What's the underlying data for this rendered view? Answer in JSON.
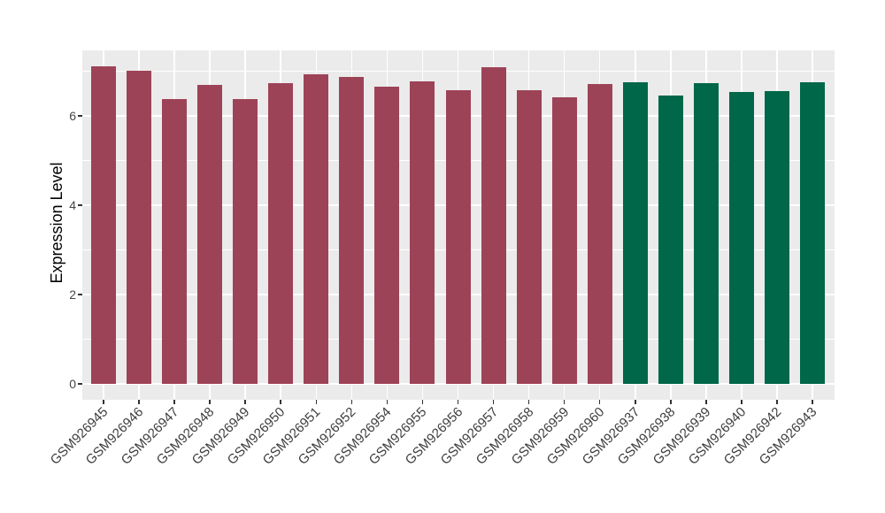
{
  "chart_data": {
    "type": "bar",
    "title": "",
    "xlabel": "",
    "ylabel": "Expression Level",
    "ylim": [
      0,
      7.5
    ],
    "yticks_major": [
      0,
      2,
      4,
      6
    ],
    "yticks_minor": [
      1,
      3,
      5,
      7
    ],
    "grid": "on",
    "legend_position": "none",
    "panel_bg": "#ebebeb",
    "grid_color": "#ffffff",
    "tick_mark_color": "#333333",
    "axis_text_color": "#3d3d3d",
    "group_colors": {
      "groupA": "#9d4357",
      "groupB": "#006749"
    },
    "bars": [
      {
        "label": "GSM926945",
        "value": 7.11,
        "group": "groupA"
      },
      {
        "label": "GSM926946",
        "value": 7.01,
        "group": "groupA"
      },
      {
        "label": "GSM926947",
        "value": 6.38,
        "group": "groupA"
      },
      {
        "label": "GSM926948",
        "value": 6.69,
        "group": "groupA"
      },
      {
        "label": "GSM926949",
        "value": 6.38,
        "group": "groupA"
      },
      {
        "label": "GSM926950",
        "value": 6.74,
        "group": "groupA"
      },
      {
        "label": "GSM926951",
        "value": 6.93,
        "group": "groupA"
      },
      {
        "label": "GSM926952",
        "value": 6.88,
        "group": "groupA"
      },
      {
        "label": "GSM926954",
        "value": 6.65,
        "group": "groupA"
      },
      {
        "label": "GSM926955",
        "value": 6.77,
        "group": "groupA"
      },
      {
        "label": "GSM926956",
        "value": 6.58,
        "group": "groupA"
      },
      {
        "label": "GSM926957",
        "value": 7.08,
        "group": "groupA"
      },
      {
        "label": "GSM926958",
        "value": 6.57,
        "group": "groupA"
      },
      {
        "label": "GSM926959",
        "value": 6.42,
        "group": "groupA"
      },
      {
        "label": "GSM926960",
        "value": 6.72,
        "group": "groupA"
      },
      {
        "label": "GSM926937",
        "value": 6.76,
        "group": "groupB"
      },
      {
        "label": "GSM926938",
        "value": 6.46,
        "group": "groupB"
      },
      {
        "label": "GSM926939",
        "value": 6.73,
        "group": "groupB"
      },
      {
        "label": "GSM926940",
        "value": 6.53,
        "group": "groupB"
      },
      {
        "label": "GSM926942",
        "value": 6.56,
        "group": "groupB"
      },
      {
        "label": "GSM926943",
        "value": 6.75,
        "group": "groupB"
      }
    ]
  }
}
